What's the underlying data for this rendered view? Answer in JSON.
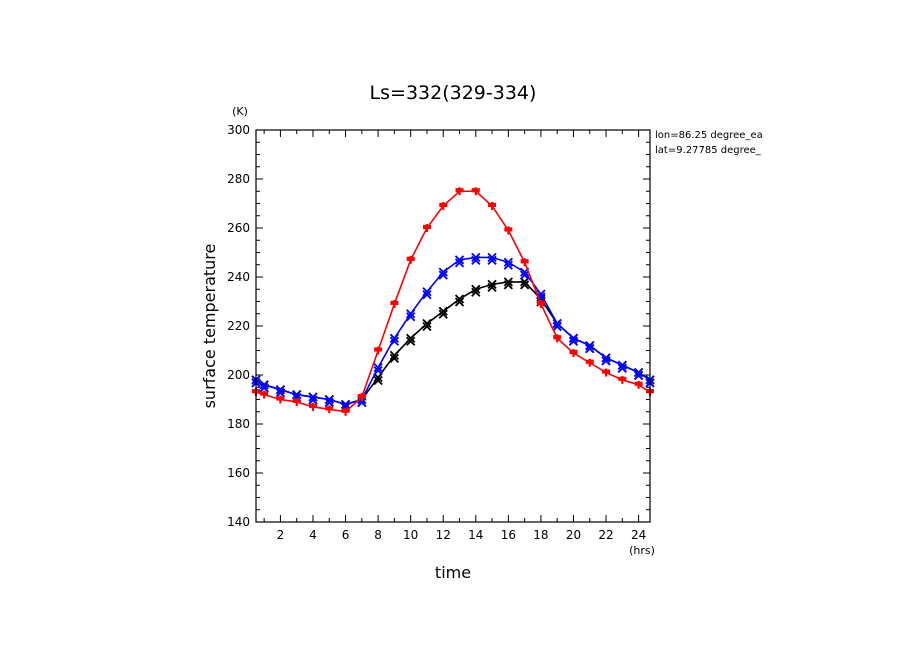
{
  "chart_data": {
    "type": "line",
    "title": "Ls=332(329-334)",
    "xlabel": "time",
    "ylabel": "surface temperature",
    "x_unit": "(hrs)",
    "y_unit": "(K)",
    "xlim": [
      0.5,
      24.7
    ],
    "ylim": [
      140,
      300
    ],
    "x_ticks": [
      2,
      4,
      6,
      8,
      10,
      12,
      14,
      16,
      18,
      20,
      22,
      24
    ],
    "y_ticks": [
      140,
      160,
      180,
      200,
      220,
      240,
      260,
      280,
      300
    ],
    "annotations": [
      "lon=86.25 degree_ea",
      "lat=9.27785 degree_"
    ],
    "x": [
      0.5,
      1,
      2,
      3,
      4,
      5,
      6,
      7,
      8,
      9,
      10,
      11,
      12,
      13,
      14,
      15,
      16,
      17,
      18,
      19,
      20,
      21,
      22,
      23,
      24,
      24.7
    ],
    "series": [
      {
        "color": "#ff0000",
        "marker": "+",
        "values": [
          193,
          192,
          190,
          189,
          187,
          186,
          185,
          191,
          210,
          229,
          247,
          260,
          269,
          275,
          275,
          269,
          259,
          246,
          229,
          215,
          209,
          205,
          201,
          198,
          196,
          193
        ]
      },
      {
        "color": "#0000ff",
        "marker": "x",
        "values": [
          198,
          196,
          194,
          192,
          191,
          190,
          188,
          190,
          203,
          215,
          225,
          234,
          242,
          247,
          248,
          248,
          246,
          242,
          233,
          221,
          215,
          212,
          207,
          204,
          201,
          198
        ]
      },
      {
        "color": "#000000",
        "marker": "x",
        "values": [
          198,
          196,
          194,
          192,
          191,
          190,
          188,
          190,
          199,
          208,
          215,
          221,
          226,
          231,
          235,
          237,
          238,
          238,
          231,
          221,
          215,
          212,
          207,
          204,
          201,
          198
        ]
      }
    ]
  }
}
